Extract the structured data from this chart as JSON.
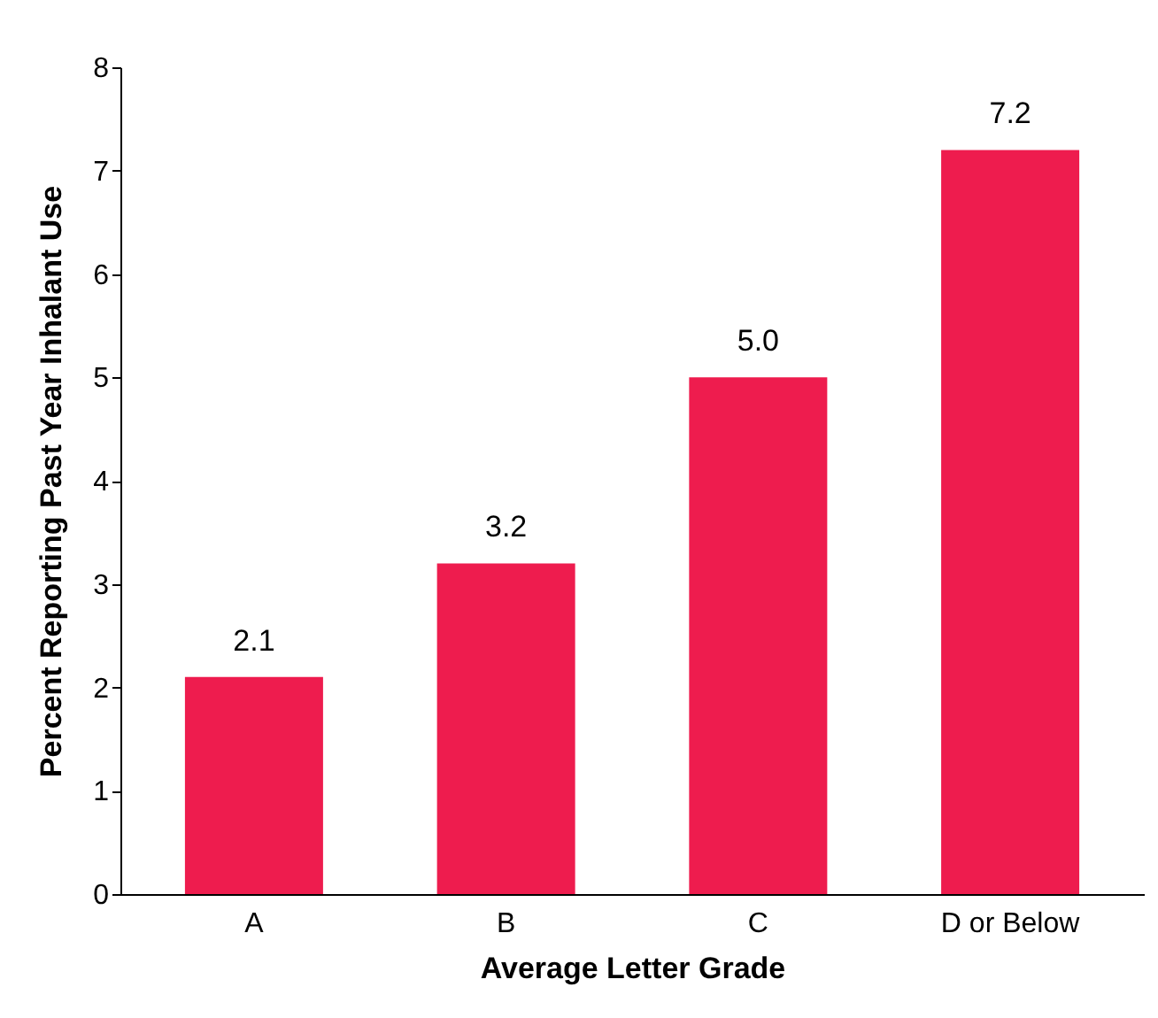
{
  "chart_data": {
    "type": "bar",
    "xlabel": "Average Letter Grade",
    "ylabel": "Percent Reporting Past Year Inhalant Use",
    "categories": [
      "A",
      "B",
      "C",
      "D or Below"
    ],
    "values": [
      2.1,
      3.2,
      5.0,
      7.2
    ],
    "value_labels": [
      "2.1",
      "3.2",
      "5.0",
      "7.2"
    ],
    "color": "#ee1c4e",
    "ylim": [
      0,
      8
    ],
    "yticks": [
      0,
      1,
      2,
      3,
      4,
      5,
      6,
      7,
      8
    ],
    "grid": false
  }
}
